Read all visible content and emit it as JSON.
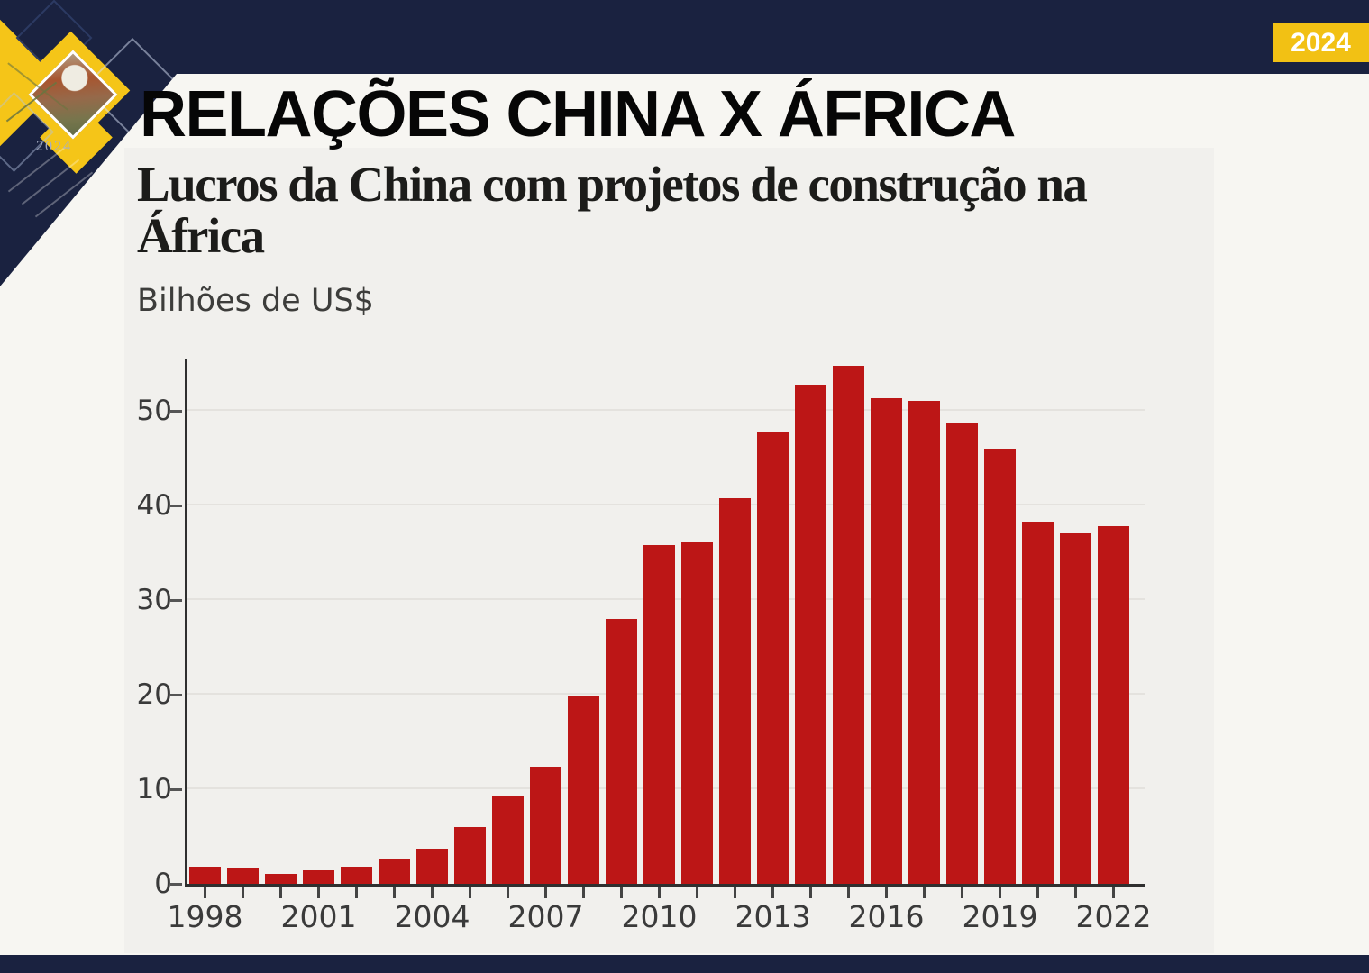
{
  "header": {
    "title": "RELAÇÕES CHINA X ÁFRICA"
  },
  "badge": {
    "label": "2024"
  },
  "deco": {
    "year_label": "2024",
    "photo_alt": "diamond-photo-of-buildings"
  },
  "chart": {
    "title": "Lucros da China com projetos de construção na África",
    "unit_label": "Bilhões de US$"
  },
  "colors": {
    "navy": "#1a2240",
    "yellow": "#f5c518",
    "badge_yellow": "#f2c114",
    "bar_red": "#bc1616",
    "page_bg": "#f7f6f2",
    "card_bg": "#f1f0ed",
    "grid": "#e4e2de",
    "axis": "#2f2f2f",
    "label_text": "#3a3a3a"
  },
  "chart_data": {
    "type": "bar",
    "title": "Lucros da China com projetos de construção na África",
    "xlabel": "",
    "ylabel": "Bilhões de US$",
    "categories": [
      1998,
      1999,
      2000,
      2001,
      2002,
      2003,
      2004,
      2005,
      2006,
      2007,
      2008,
      2009,
      2010,
      2011,
      2012,
      2013,
      2014,
      2015,
      2016,
      2017,
      2018,
      2019,
      2020,
      2021,
      2022
    ],
    "values": [
      1.8,
      1.7,
      1.0,
      1.4,
      1.8,
      2.6,
      3.7,
      6.0,
      9.3,
      12.4,
      19.8,
      28.0,
      35.8,
      36.1,
      40.8,
      47.8,
      52.8,
      54.8,
      51.3,
      51.0,
      48.7,
      46.0,
      38.3,
      37.0,
      37.8
    ],
    "y_ticks": [
      0,
      10,
      20,
      30,
      40,
      50
    ],
    "x_tick_labels": [
      "1998",
      "2001",
      "2004",
      "2007",
      "2010",
      "2013",
      "2016",
      "2019",
      "2022"
    ],
    "ylim": [
      0,
      55
    ],
    "grid": true,
    "legend": "none",
    "bar_color": "#bc1616"
  }
}
